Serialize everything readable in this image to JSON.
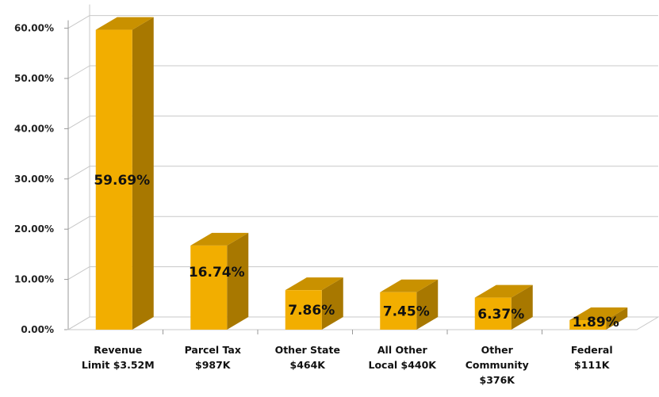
{
  "chart_data": {
    "type": "bar",
    "categories": [
      [
        "Revenue",
        "Limit  $3.52M"
      ],
      [
        "Parcel Tax",
        "$987K"
      ],
      [
        "Other State",
        "$464K"
      ],
      [
        "All Other",
        "Local  $440K"
      ],
      [
        "Other",
        "Community",
        "$376K"
      ],
      [
        "Federal",
        "$111K"
      ]
    ],
    "values": [
      59.69,
      16.74,
      7.86,
      7.45,
      6.37,
      1.89
    ],
    "data_labels": [
      "59.69%",
      "16.74%",
      "7.86%",
      "7.45%",
      "6.37%",
      "1.89%"
    ],
    "y_ticks": [
      "0.00%",
      "10.00%",
      "20.00%",
      "30.00%",
      "40.00%",
      "50.00%",
      "60.00%"
    ],
    "ylim": [
      0,
      60
    ],
    "grid": true,
    "legend": "none",
    "style": "3d-column",
    "colors": {
      "bar_front": "#F2AE00",
      "bar_side": "#A87800",
      "bar_top": "#C99100",
      "grid": "#c8c8c8"
    }
  }
}
